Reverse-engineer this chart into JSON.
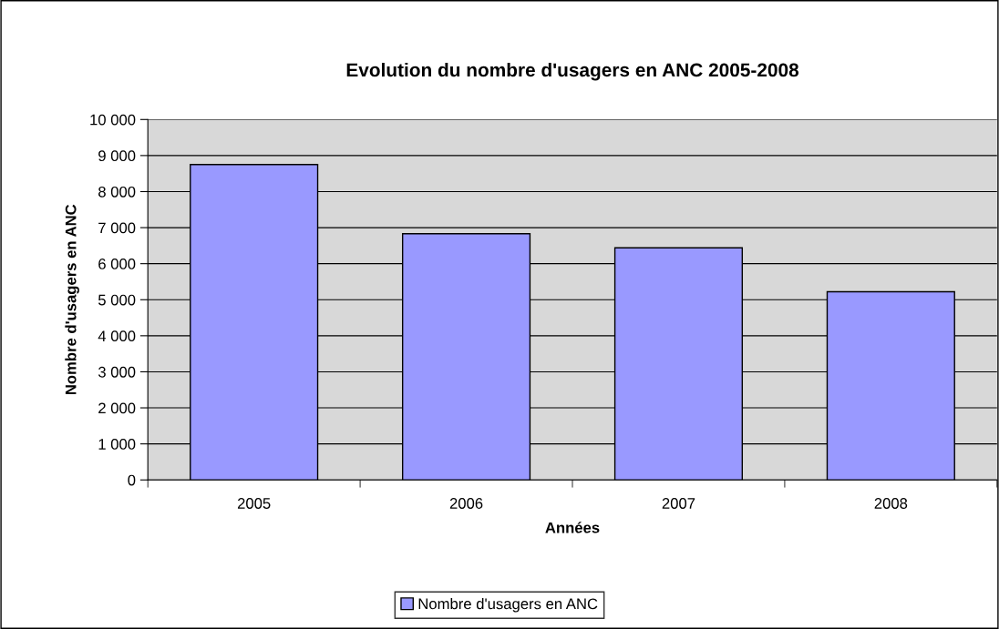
{
  "chart_data": {
    "type": "bar",
    "title": "Evolution du nombre d'usagers en ANC 2005-2008",
    "xlabel": "Années",
    "ylabel": "Nombre d'usagers en ANC",
    "categories": [
      "2005",
      "2006",
      "2007",
      "2008"
    ],
    "series": [
      {
        "name": "Nombre d'usagers en ANC",
        "color": "#9999ff",
        "values": [
          8750,
          6830,
          6440,
          5220
        ]
      }
    ],
    "ylim": [
      0,
      10000
    ],
    "yticks": [
      0,
      {
        "value": 1000,
        "label": "1 000"
      },
      {
        "value": 2000,
        "label": "2 000"
      },
      {
        "value": 3000,
        "label": "3 000"
      },
      {
        "value": 4000,
        "label": "4 000"
      },
      {
        "value": 5000,
        "label": "5 000"
      },
      {
        "value": 6000,
        "label": "6 000"
      },
      {
        "value": 7000,
        "label": "7 000"
      },
      {
        "value": 8000,
        "label": "8 000"
      },
      {
        "value": 9000,
        "label": "9 000"
      },
      {
        "value": 10000,
        "label": "10 000"
      }
    ],
    "grid": "y",
    "legend": "bottom"
  }
}
